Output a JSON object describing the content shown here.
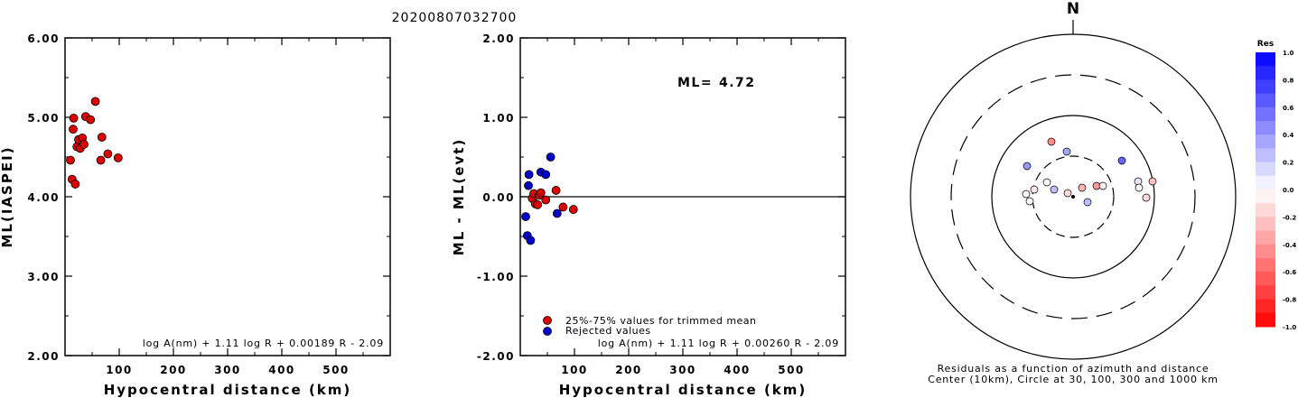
{
  "title": "20200807032700",
  "chart_data": [
    {
      "type": "scatter",
      "xlabel": "Hypocentral distance (km)",
      "ylabel": "ML(IASPEI)",
      "xlim": [
        0,
        600
      ],
      "ylim": [
        2.0,
        6.0
      ],
      "xticks": [
        "100",
        "200",
        "300",
        "400",
        "500"
      ],
      "yticks": [
        "2.00",
        "3.00",
        "4.00",
        "5.00",
        "6.00"
      ],
      "formula": "log A(nm) + 1.11 log R + 0.00189 R - 2.09",
      "series": [
        {
          "color": "#dd0000",
          "points": [
            [
              10,
              4.46
            ],
            [
              13,
              4.22
            ],
            [
              15,
              4.85
            ],
            [
              16,
              4.99
            ],
            [
              19,
              4.16
            ],
            [
              22,
              4.63
            ],
            [
              25,
              4.72
            ],
            [
              28,
              4.61
            ],
            [
              32,
              4.74
            ],
            [
              35,
              4.66
            ],
            [
              38,
              5.01
            ],
            [
              47,
              4.97
            ],
            [
              56,
              5.2
            ],
            [
              66,
              4.46
            ],
            [
              68,
              4.75
            ],
            [
              79,
              4.54
            ],
            [
              98,
              4.49
            ]
          ]
        }
      ]
    },
    {
      "type": "scatter",
      "xlabel": "Hypocentral distance (km)",
      "ylabel": "ML - ML(evt)",
      "xlim": [
        0,
        600
      ],
      "ylim": [
        -2.0,
        2.0
      ],
      "xticks": [
        "100",
        "200",
        "300",
        "400",
        "500"
      ],
      "yticks": [
        "-2.00",
        "-1.00",
        "0.00",
        "1.00",
        "2.00"
      ],
      "ml_label": "ML=",
      "ml_value": "4.72",
      "formula": "log A(nm) + 1.11 log R + 0.00260 R - 2.09",
      "legend": [
        {
          "label": "25%-75% values for trimmed mean",
          "color": "#dd0000"
        },
        {
          "label": "Rejected values",
          "color": "#0000cc"
        }
      ],
      "series": [
        {
          "color": "#dd0000",
          "points": [
            [
              22,
              -0.02
            ],
            [
              25,
              0.04
            ],
            [
              28,
              -0.09
            ],
            [
              32,
              -0.1
            ],
            [
              35,
              0.02
            ],
            [
              38,
              0.05
            ],
            [
              47,
              -0.04
            ],
            [
              66,
              0.08
            ],
            [
              79,
              -0.13
            ],
            [
              98,
              -0.16
            ]
          ]
        },
        {
          "color": "#0000cc",
          "points": [
            [
              10,
              -0.25
            ],
            [
              13,
              -0.49
            ],
            [
              15,
              0.14
            ],
            [
              16,
              0.28
            ],
            [
              19,
              -0.55
            ],
            [
              38,
              0.31
            ],
            [
              47,
              0.28
            ],
            [
              56,
              0.5
            ],
            [
              68,
              -0.21
            ]
          ]
        }
      ]
    },
    {
      "type": "scatter",
      "north_label": "N",
      "caption_line1": "Residuals as a function of azimuth and distance",
      "caption_line2": "Center (10km), Circle at 30, 100, 300 and 1000 km",
      "colorbar_title": "Res",
      "colorbar_ticks": [
        "1.0",
        "0.8",
        "0.6",
        "0.4",
        "0.2",
        "0.0",
        "-0.2",
        "-0.4",
        "-0.6",
        "-0.8",
        "-1.0"
      ],
      "points": [
        {
          "dx": -6,
          "dy": -4,
          "res": -0.15
        },
        {
          "dx": 10,
          "dy": -10,
          "res": -0.3
        },
        {
          "dx": 26,
          "dy": -12,
          "res": -0.4
        },
        {
          "dx": 33,
          "dy": -12,
          "res": -0.05
        },
        {
          "dx": 16,
          "dy": 6,
          "res": 0.25
        },
        {
          "dx": -29,
          "dy": -16,
          "res": -0.02
        },
        {
          "dx": -43,
          "dy": -8,
          "res": -0.1
        },
        {
          "dx": -52,
          "dy": -3,
          "res": -0.05
        },
        {
          "dx": -48,
          "dy": 5,
          "res": 0.03
        },
        {
          "dx": -21,
          "dy": -8,
          "res": 0.25
        },
        {
          "dx": -7,
          "dy": -50,
          "res": 0.35
        },
        {
          "dx": -24,
          "dy": -61,
          "res": -0.45
        },
        {
          "dx": -51,
          "dy": -34,
          "res": 0.4
        },
        {
          "dx": 54,
          "dy": -40,
          "res": 0.6
        },
        {
          "dx": 72,
          "dy": -17,
          "res": 0.1
        },
        {
          "dx": 73,
          "dy": -10,
          "res": 0.02
        },
        {
          "dx": 81,
          "dy": 1,
          "res": -0.15
        },
        {
          "dx": 88,
          "dy": -17,
          "res": -0.25
        }
      ]
    }
  ]
}
